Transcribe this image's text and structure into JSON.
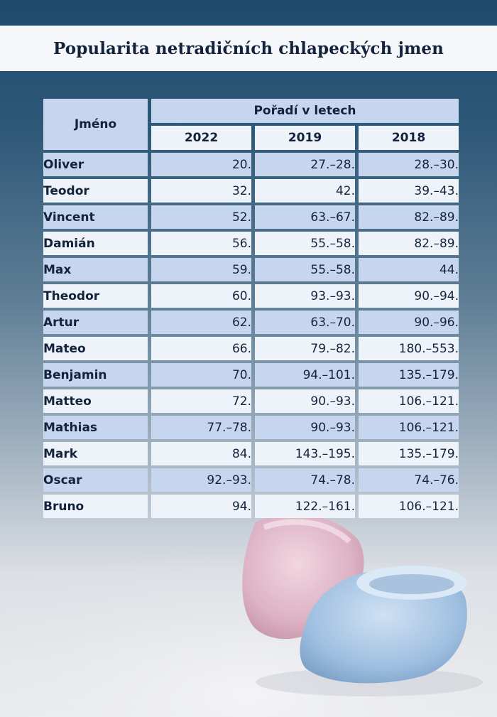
{
  "title": "Popularita netradičních chlapeckých jmen",
  "chart_data": {
    "type": "table",
    "header": {
      "name_col": "Jméno",
      "group": "Pořadí v letech",
      "years": [
        "2022",
        "2019",
        "2018"
      ]
    },
    "rows": [
      {
        "name": "Oliver",
        "values": [
          "20.",
          "27.–28.",
          "28.–30."
        ]
      },
      {
        "name": "Teodor",
        "values": [
          "32.",
          "42.",
          "39.–43."
        ]
      },
      {
        "name": "Vincent",
        "values": [
          "52.",
          "63.–67.",
          "82.–89."
        ]
      },
      {
        "name": "Damián",
        "values": [
          "56.",
          "55.–58.",
          "82.–89."
        ]
      },
      {
        "name": "Max",
        "values": [
          "59.",
          "55.–58.",
          "44."
        ]
      },
      {
        "name": "Theodor",
        "values": [
          "60.",
          "93.–93.",
          "90.–94."
        ]
      },
      {
        "name": "Artur",
        "values": [
          "62.",
          "63.–70.",
          "90.–96."
        ]
      },
      {
        "name": "Mateo",
        "values": [
          "66.",
          "79.–82.",
          "180.–553."
        ]
      },
      {
        "name": "Benjamin",
        "values": [
          "70.",
          "94.–101.",
          "135.–179."
        ]
      },
      {
        "name": "Matteo",
        "values": [
          "72.",
          "90.–93.",
          "106.–121."
        ]
      },
      {
        "name": "Mathias",
        "values": [
          "77.–78.",
          "90.–93.",
          "106.–121."
        ]
      },
      {
        "name": "Mark",
        "values": [
          "84.",
          "143.–195.",
          "135.–179."
        ]
      },
      {
        "name": "Oscar",
        "values": [
          "92.–93.",
          "74.–78.",
          "74.–76."
        ]
      },
      {
        "name": "Bruno",
        "values": [
          "94.",
          "122.–161.",
          "106.–121."
        ]
      }
    ]
  },
  "colors": {
    "dark_cell": "#c7d6ef",
    "light_cell": "#eef2f9",
    "text": "#14233c"
  }
}
